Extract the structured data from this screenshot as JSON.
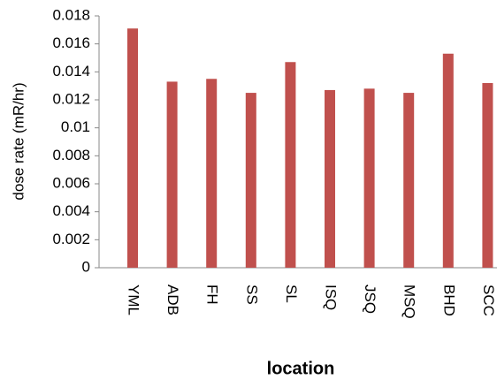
{
  "chart_data": {
    "type": "bar",
    "x_label": "location",
    "y_label": "dose rate (mR/hr)",
    "categories": [
      "YML",
      "ADB",
      "FH",
      "SS",
      "SL",
      "ISQ",
      "JSQ",
      "MSQ",
      "BHD",
      "SCC"
    ],
    "values": [
      0.0171,
      0.0133,
      0.0135,
      0.0125,
      0.0147,
      0.0127,
      0.0128,
      0.0125,
      0.0153,
      0.0132
    ],
    "color": "#c0504d",
    "ylim": [
      0,
      0.018
    ],
    "yticks": [
      0,
      0.002,
      0.004,
      0.006,
      0.008,
      0.01,
      0.012,
      0.014,
      0.016,
      0.018
    ],
    "grid": false
  }
}
